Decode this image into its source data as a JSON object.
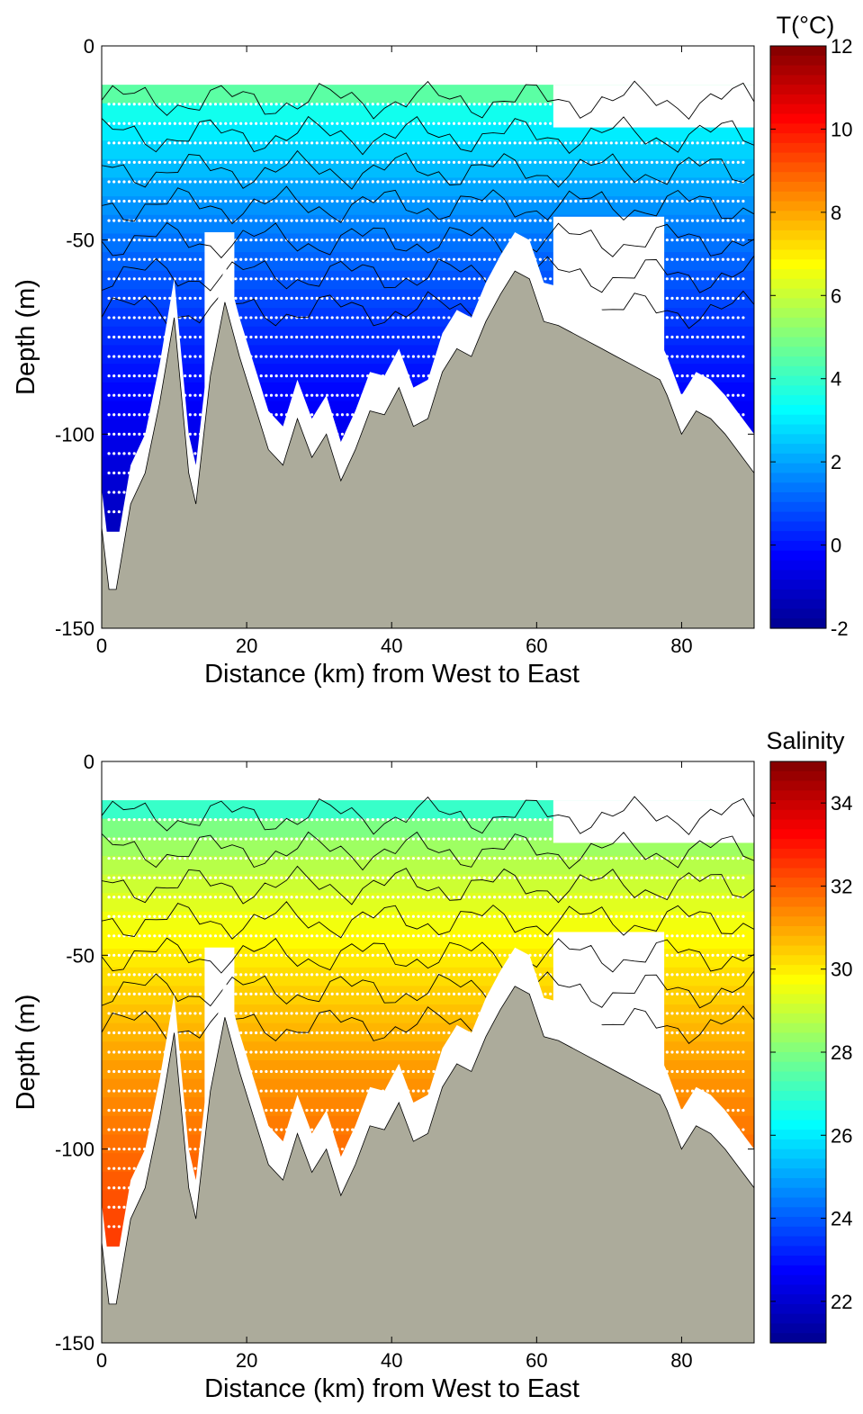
{
  "colors": {
    "terrain": "#acab9b",
    "background": "#ffffff",
    "contour": "#000000",
    "sample_points": "#ffffff",
    "colormap": [
      "#00008f",
      "#0000ff",
      "#0080ff",
      "#00ffff",
      "#80ff80",
      "#ffff00",
      "#ff8000",
      "#ff0000",
      "#800000"
    ]
  },
  "chart_data": [
    {
      "type": "heatmap",
      "title": "",
      "xlabel": "Distance (km) from West to East",
      "ylabel": "Depth (m)",
      "xlim": [
        0,
        90
      ],
      "ylim": [
        -150,
        0
      ],
      "xticks": [
        "0",
        "20",
        "40",
        "60",
        "80"
      ],
      "yticks": [
        "0",
        "-50",
        "-100",
        "-150"
      ],
      "colorbar": {
        "label": "T(°C)",
        "range": [
          -2,
          12
        ],
        "ticks": [
          "12",
          "10",
          "8",
          "6",
          "4",
          "2",
          "0",
          "-2"
        ]
      },
      "surface_value": 4.5,
      "bottom_value": -1.2,
      "bottom_profile": {
        "x": [
          0,
          1,
          2,
          4,
          6,
          8,
          10,
          12,
          13,
          15,
          17,
          19,
          21,
          23,
          25,
          27,
          29,
          31,
          33,
          35,
          37,
          39,
          41,
          43,
          45,
          47,
          49,
          51,
          53,
          55,
          57,
          59,
          61,
          63,
          65,
          67,
          69,
          71,
          73,
          75,
          77,
          78,
          80,
          82,
          84,
          86,
          88,
          90
        ],
        "depth": [
          -124,
          -140,
          -140,
          -118,
          -110,
          -92,
          -70,
          -110,
          -118,
          -85,
          -66,
          -80,
          -92,
          -104,
          -108,
          -96,
          -106,
          -100,
          -112,
          -104,
          -94,
          -95,
          -88,
          -98,
          -96,
          -84,
          -78,
          -80,
          -71,
          -64,
          -58,
          -60,
          -71,
          -72,
          -74,
          -76,
          -78,
          -80,
          -82,
          -84,
          -86,
          -90,
          -100,
          -94,
          -96,
          -100,
          -105,
          -110
        ]
      }
    },
    {
      "type": "heatmap",
      "title": "",
      "xlabel": "Distance (km) from West to East",
      "ylabel": "Depth (m)",
      "xlim": [
        0,
        90
      ],
      "ylim": [
        -150,
        0
      ],
      "xticks": [
        "0",
        "20",
        "40",
        "60",
        "80"
      ],
      "yticks": [
        "0",
        "-50",
        "-100",
        "-150"
      ],
      "colorbar": {
        "label": "Salinity",
        "range": [
          21,
          35
        ],
        "ticks": [
          "34",
          "32",
          "30",
          "28",
          "26",
          "24",
          "22"
        ]
      },
      "surface_value": 27,
      "bottom_value": 32.4,
      "bottom_profile": {
        "x": [
          0,
          1,
          2,
          4,
          6,
          8,
          10,
          12,
          13,
          15,
          17,
          19,
          21,
          23,
          25,
          27,
          29,
          31,
          33,
          35,
          37,
          39,
          41,
          43,
          45,
          47,
          49,
          51,
          53,
          55,
          57,
          59,
          61,
          63,
          65,
          67,
          69,
          71,
          73,
          75,
          77,
          78,
          80,
          82,
          84,
          86,
          88,
          90
        ],
        "depth": [
          -124,
          -140,
          -140,
          -118,
          -110,
          -92,
          -70,
          -110,
          -118,
          -85,
          -66,
          -80,
          -92,
          -104,
          -108,
          -96,
          -106,
          -100,
          -112,
          -104,
          -94,
          -95,
          -88,
          -98,
          -96,
          -84,
          -78,
          -80,
          -71,
          -64,
          -58,
          -60,
          -71,
          -72,
          -74,
          -76,
          -78,
          -80,
          -82,
          -84,
          -86,
          -90,
          -100,
          -94,
          -96,
          -100,
          -105,
          -110
        ]
      }
    }
  ]
}
